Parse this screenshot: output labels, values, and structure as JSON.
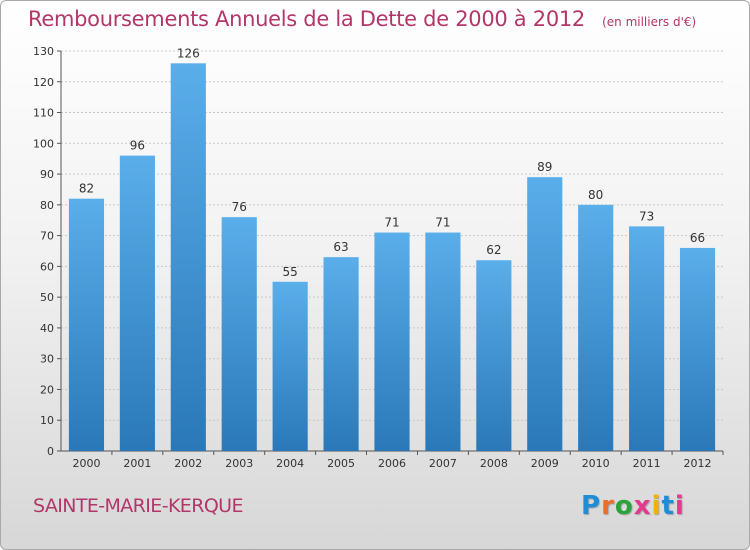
{
  "title": "Remboursements Annuels de la Dette de 2000 à 2012",
  "subtitle": "(en milliers d'€)",
  "commune": "SAINTE-MARIE-KERQUE",
  "logo": {
    "text": "Proxiti",
    "letter_colors": [
      "#1f8dd6",
      "#e8702a",
      "#2aa33b",
      "#e23b8e",
      "#f0b400",
      "#1f8dd6",
      "#e23b8e"
    ]
  },
  "colors": {
    "title": "#b3366a",
    "bar_light": "#5aaeea",
    "bar_dark": "#2a78b8",
    "grid": "#c8c8c8",
    "axis": "#555555"
  },
  "chart_data": {
    "type": "bar",
    "categories": [
      "2000",
      "2001",
      "2002",
      "2003",
      "2004",
      "2005",
      "2006",
      "2007",
      "2008",
      "2009",
      "2010",
      "2011",
      "2012"
    ],
    "values": [
      82,
      96,
      126,
      76,
      55,
      63,
      71,
      71,
      62,
      89,
      80,
      73,
      66
    ],
    "ylim": [
      0,
      130
    ],
    "yticks": [
      0,
      10,
      20,
      30,
      40,
      50,
      60,
      70,
      80,
      90,
      100,
      110,
      120,
      130
    ],
    "grid": true,
    "data_labels": true
  }
}
